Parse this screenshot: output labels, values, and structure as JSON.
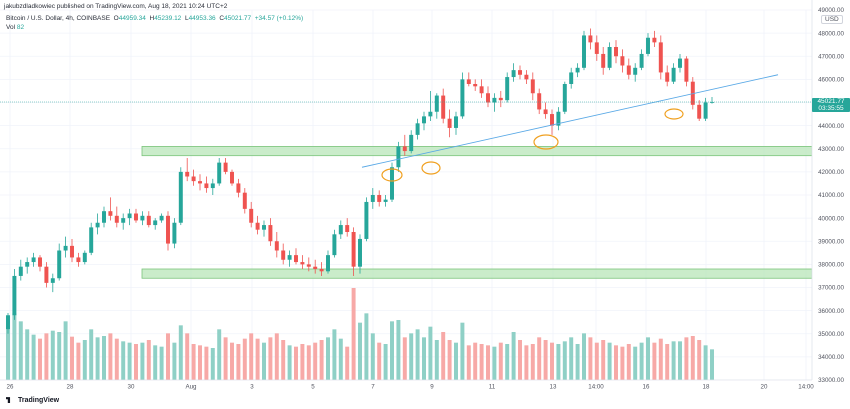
{
  "header": {
    "publisher": "jakubzdladkowiec published on TradingView.com, Aug 18, 2021 10:24 UTC+2",
    "symbol": "Bitcoin / U.S. Dollar, 4h, COINBASE",
    "o_label": "O",
    "o_value": "44959.34",
    "h_label": "H",
    "h_value": "45239.12",
    "l_label": "L",
    "l_value": "44953.36",
    "c_label": "C",
    "c_value": "45021.77",
    "change": "+34.57 (+0.12%)",
    "vol_label": "Vol",
    "vol_value": "82",
    "currency": "USD"
  },
  "price_tag": {
    "price": "45021.77",
    "countdown": "03:35:55"
  },
  "footer": {
    "brand": "TradingView"
  },
  "colors": {
    "up": "#26a69a",
    "down": "#ef5350",
    "vol_up": "#8fd0c6",
    "vol_down": "#f7a9a7",
    "zone": "#b8e6b8",
    "zone_border": "#7bc47b",
    "trendline": "#5aa9e6",
    "marker": "#f0a020"
  },
  "chart_data": {
    "type": "candlestick",
    "y_axis": {
      "min": 33000,
      "max": 49000,
      "ticks": [
        "49000.00",
        "48000.00",
        "47000.00",
        "46000.00",
        "45000.00",
        "44000.00",
        "43000.00",
        "42000.00",
        "41000.00",
        "40000.00",
        "39000.00",
        "38000.00",
        "37000.00",
        "36000.00",
        "35000.00",
        "34000.00",
        "33000.00"
      ]
    },
    "x_axis": {
      "ticks": [
        "26",
        "28",
        "30",
        "Aug",
        "3",
        "5",
        "7",
        "9",
        "11",
        "13",
        "14:00",
        "16",
        "18",
        "20",
        "14:00"
      ]
    },
    "support_zones": [
      {
        "low": 42700,
        "high": 43100
      },
      {
        "low": 37400,
        "high": 37800
      }
    ],
    "trendline": {
      "from_price": 42200,
      "to_price": 46200
    },
    "last_price": 45021.77,
    "candles_ohlc": [
      [
        35200,
        35900,
        35000,
        35800
      ],
      [
        35800,
        37800,
        35600,
        37500
      ],
      [
        37500,
        38200,
        37300,
        37900
      ],
      [
        37900,
        38300,
        37600,
        38100
      ],
      [
        38100,
        38500,
        37900,
        38300
      ],
      [
        38300,
        38400,
        37700,
        37900
      ],
      [
        37900,
        38100,
        37000,
        37200
      ],
      [
        37200,
        37600,
        36800,
        37400
      ],
      [
        37400,
        38900,
        37300,
        38600
      ],
      [
        38600,
        39200,
        38300,
        38800
      ],
      [
        38800,
        39100,
        38100,
        38300
      ],
      [
        38300,
        38500,
        37900,
        38100
      ],
      [
        38100,
        38600,
        38000,
        38500
      ],
      [
        38500,
        39800,
        38400,
        39600
      ],
      [
        39600,
        40200,
        39300,
        39800
      ],
      [
        39800,
        40500,
        39600,
        40300
      ],
      [
        40300,
        40900,
        39900,
        40100
      ],
      [
        40100,
        40500,
        39600,
        39800
      ],
      [
        39800,
        40200,
        39500,
        40000
      ],
      [
        40000,
        40400,
        39700,
        40200
      ],
      [
        40200,
        40400,
        39800,
        39900
      ],
      [
        39900,
        40300,
        39700,
        40100
      ],
      [
        40100,
        40300,
        39600,
        39700
      ],
      [
        39700,
        40000,
        39500,
        39900
      ],
      [
        39900,
        40200,
        39800,
        40100
      ],
      [
        40100,
        40300,
        38600,
        38900
      ],
      [
        38900,
        40000,
        38700,
        39800
      ],
      [
        39800,
        42200,
        39700,
        42000
      ],
      [
        42000,
        42600,
        41600,
        41800
      ],
      [
        41800,
        42100,
        41400,
        41600
      ],
      [
        41600,
        41900,
        41200,
        41500
      ],
      [
        41500,
        41800,
        41100,
        41300
      ],
      [
        41300,
        41700,
        41000,
        41500
      ],
      [
        41500,
        42600,
        41400,
        42400
      ],
      [
        42400,
        42600,
        41900,
        42000
      ],
      [
        42000,
        42100,
        41400,
        41500
      ],
      [
        41500,
        41700,
        40900,
        41100
      ],
      [
        41100,
        41300,
        40200,
        40400
      ],
      [
        40400,
        40700,
        39600,
        39800
      ],
      [
        39800,
        40100,
        39300,
        39500
      ],
      [
        39500,
        39900,
        39200,
        39700
      ],
      [
        39700,
        40000,
        38800,
        39000
      ],
      [
        39000,
        39400,
        38300,
        38600
      ],
      [
        38600,
        38900,
        38000,
        38200
      ],
      [
        38200,
        38600,
        37900,
        38400
      ],
      [
        38400,
        38700,
        38000,
        38100
      ],
      [
        38100,
        38400,
        37800,
        38000
      ],
      [
        38000,
        38300,
        37700,
        37900
      ],
      [
        37900,
        38200,
        37600,
        37800
      ],
      [
        37800,
        38100,
        37500,
        37700
      ],
      [
        37700,
        38600,
        37600,
        38400
      ],
      [
        38400,
        39500,
        38300,
        39300
      ],
      [
        39300,
        39900,
        39100,
        39700
      ],
      [
        39700,
        40000,
        39200,
        39400
      ],
      [
        39400,
        39600,
        37500,
        37900
      ],
      [
        37900,
        39300,
        37600,
        39100
      ],
      [
        39100,
        40900,
        39000,
        40700
      ],
      [
        40700,
        41300,
        40400,
        41000
      ],
      [
        41000,
        41200,
        40500,
        40700
      ],
      [
        40700,
        41000,
        40500,
        40800
      ],
      [
        40800,
        42400,
        40700,
        42200
      ],
      [
        42200,
        43300,
        42000,
        43100
      ],
      [
        43100,
        43600,
        42700,
        42900
      ],
      [
        42900,
        43800,
        42800,
        43600
      ],
      [
        43600,
        44300,
        43400,
        44100
      ],
      [
        44100,
        44600,
        43800,
        44400
      ],
      [
        44400,
        45500,
        44200,
        44600
      ],
      [
        44600,
        45400,
        44300,
        45300
      ],
      [
        45300,
        45600,
        44100,
        44300
      ],
      [
        44300,
        44700,
        43500,
        43900
      ],
      [
        43900,
        44600,
        43600,
        44400
      ],
      [
        44400,
        46300,
        44300,
        46000
      ],
      [
        46000,
        46300,
        45700,
        45800
      ],
      [
        45800,
        46000,
        45500,
        45700
      ],
      [
        45700,
        46000,
        45200,
        45400
      ],
      [
        45400,
        45700,
        44800,
        45000
      ],
      [
        45000,
        45400,
        44600,
        45200
      ],
      [
        45200,
        45500,
        44800,
        45100
      ],
      [
        45100,
        46300,
        45000,
        46100
      ],
      [
        46100,
        46700,
        45900,
        46400
      ],
      [
        46400,
        46600,
        46000,
        46200
      ],
      [
        46200,
        46400,
        45800,
        46000
      ],
      [
        46000,
        46300,
        45100,
        45400
      ],
      [
        45400,
        45600,
        44500,
        44700
      ],
      [
        44700,
        45000,
        44300,
        44500
      ],
      [
        44500,
        44700,
        43600,
        44000
      ],
      [
        44000,
        44800,
        43800,
        44600
      ],
      [
        44600,
        45900,
        44500,
        45800
      ],
      [
        45800,
        46500,
        45600,
        46300
      ],
      [
        46300,
        46700,
        46100,
        46500
      ],
      [
        46500,
        48100,
        46400,
        47900
      ],
      [
        47900,
        48200,
        47300,
        47600
      ],
      [
        47600,
        47900,
        46800,
        47100
      ],
      [
        47100,
        47400,
        46200,
        46500
      ],
      [
        46500,
        47600,
        46400,
        47400
      ],
      [
        47400,
        47700,
        46700,
        47000
      ],
      [
        47000,
        47300,
        46300,
        46600
      ],
      [
        46600,
        46900,
        46000,
        46200
      ],
      [
        46200,
        46700,
        45900,
        46500
      ],
      [
        46500,
        47300,
        46400,
        47100
      ],
      [
        47100,
        48000,
        47000,
        47800
      ],
      [
        47800,
        48100,
        47400,
        47600
      ],
      [
        47600,
        47900,
        46000,
        46300
      ],
      [
        46300,
        46600,
        45700,
        45900
      ],
      [
        45900,
        46700,
        45800,
        46500
      ],
      [
        46500,
        47100,
        46300,
        46900
      ],
      [
        46900,
        47000,
        45700,
        45900
      ],
      [
        45900,
        46100,
        44700,
        44900
      ],
      [
        44900,
        45100,
        44200,
        44300
      ],
      [
        44300,
        45200,
        44200,
        45000
      ],
      [
        45000,
        45240,
        44950,
        45021
      ]
    ],
    "volumes": [
      820,
      1000,
      880,
      760,
      680,
      620,
      700,
      740,
      720,
      880,
      650,
      560,
      600,
      760,
      640,
      660,
      700,
      620,
      580,
      560,
      540,
      560,
      600,
      520,
      500,
      700,
      560,
      820,
      700,
      540,
      520,
      500,
      480,
      760,
      640,
      560,
      540,
      620,
      700,
      620,
      560,
      640,
      700,
      600,
      520,
      500,
      540,
      520,
      560,
      600,
      640,
      760,
      620,
      500,
      1380,
      860,
      1000,
      700,
      560,
      540,
      880,
      900,
      640,
      700,
      760,
      640,
      800,
      600,
      720,
      600,
      560,
      860,
      520,
      560,
      540,
      520,
      500,
      560,
      540,
      720,
      600,
      520,
      540,
      640,
      600,
      560,
      540,
      580,
      640,
      540,
      700,
      640,
      560,
      600,
      560,
      520,
      500,
      540,
      500,
      560,
      640,
      560,
      620,
      540,
      580,
      580,
      640,
      660,
      600,
      520,
      460
    ],
    "volume_note": "volume bars relative height (units not shown)"
  }
}
